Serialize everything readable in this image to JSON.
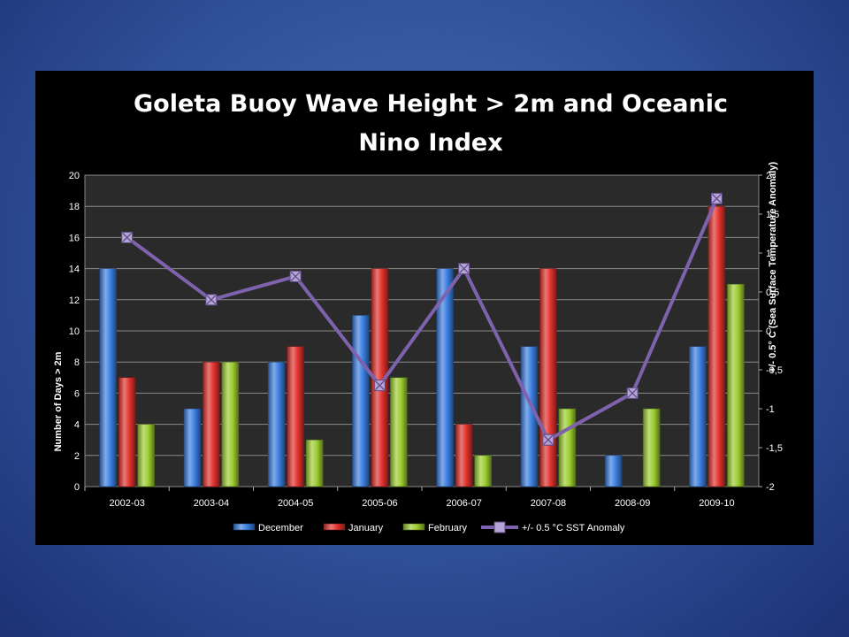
{
  "chart_data": {
    "type": "bar",
    "title_lines": [
      "Goleta Buoy Wave Height > 2m and Oceanic",
      "Nino Index"
    ],
    "ylabel": "Number of Days > 2m",
    "y2label": "+/- 0.5° C (Sea Surface Temperature Anomaly)",
    "categories": [
      "2002-03",
      "2003-04",
      "2004-05",
      "2005-06",
      "2006-07",
      "2007-08",
      "2008-09",
      "2009-10"
    ],
    "ylim": [
      0,
      20
    ],
    "yticks": [
      "0",
      "2",
      "4",
      "6",
      "8",
      "10",
      "12",
      "14",
      "16",
      "18",
      "20"
    ],
    "y2lim": [
      -2,
      2
    ],
    "y2ticks": [
      "-2",
      "-1,5",
      "-1",
      "-0,5",
      "0",
      "0,5",
      "1",
      "1,5",
      "2"
    ],
    "grid": true,
    "legend_position": "bottom",
    "series": [
      {
        "name": "December",
        "type": "bar",
        "color": "#3a7ee0",
        "values": [
          14,
          5,
          8,
          11,
          14,
          9,
          2,
          9
        ]
      },
      {
        "name": "January",
        "type": "bar",
        "color": "#e0312c",
        "values": [
          7,
          8,
          9,
          14,
          4,
          14,
          0,
          18
        ]
      },
      {
        "name": "February",
        "type": "bar",
        "color": "#9ccc30",
        "values": [
          4,
          8,
          3,
          7,
          2,
          5,
          5,
          13
        ]
      },
      {
        "name": "+/- 0.5 °C SST Anomaly",
        "type": "line",
        "axis": "right",
        "color": "#7f62ad",
        "marker_color": "#b7a3d6",
        "values": [
          1.2,
          0.4,
          0.7,
          -0.7,
          0.8,
          -1.4,
          -0.8,
          1.7
        ]
      }
    ]
  }
}
